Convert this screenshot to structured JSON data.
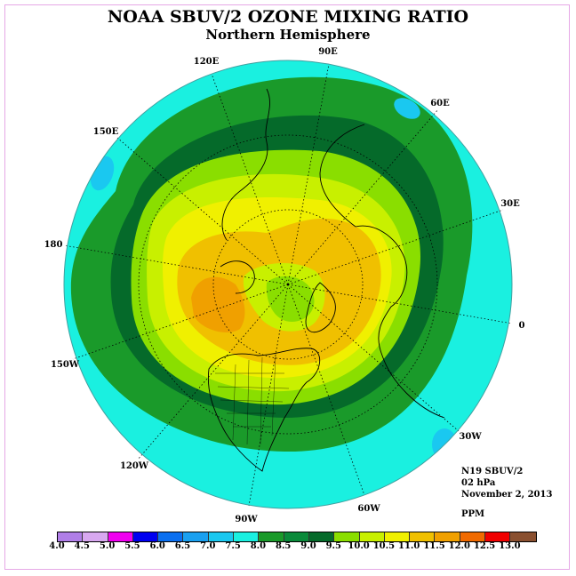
{
  "title": "NOAA SBUV/2 OZONE MIXING RATIO",
  "subtitle": "Northern Hemisphere",
  "longitude_labels": {
    "lon_90e": "90E",
    "lon_60e": "60E",
    "lon_30e": "30E",
    "lon_0": "0",
    "lon_30w": "30W",
    "lon_60w": "60W",
    "lon_90w": "90W",
    "lon_120w": "120W",
    "lon_150w": "150W",
    "lon_180": "180",
    "lon_150e": "150E",
    "lon_120e": "120E"
  },
  "info": {
    "instrument": "N19 SBUV/2",
    "pressure_level": "02 hPa",
    "date": "November 2, 2013",
    "units": "PPM"
  },
  "colorbar": {
    "ticks": [
      "4.0",
      "4.5",
      "5.0",
      "5.5",
      "6.0",
      "6.5",
      "7.0",
      "7.5",
      "8.0",
      "8.5",
      "9.0",
      "9.5",
      "10.0",
      "10.5",
      "11.0",
      "11.5",
      "12.0",
      "12.5",
      "13.0"
    ],
    "colors": [
      "#b07ee8",
      "#d8a8f0",
      "#f000f0",
      "#0000f0",
      "#0a6ff0",
      "#1aa0f0",
      "#1ac8f0",
      "#1af0e0",
      "#1a9a2a",
      "#0a8a3a",
      "#056a2a",
      "#8ade00",
      "#c8f000",
      "#f0f000",
      "#f0c000",
      "#f0a000",
      "#f06a00",
      "#f00000",
      "#8a5030"
    ]
  },
  "map_fields": {
    "ring_8p0": "#1af0e0",
    "ring_8p5": "#1a9a2a",
    "ring_9p0": "#056a2a",
    "ring_9p5": "#8ade00",
    "ring_10p0": "#c8f000",
    "ring_10p5": "#f0f000",
    "ring_11p0": "#f0c000",
    "ring_11p5": "#f0a000"
  }
}
